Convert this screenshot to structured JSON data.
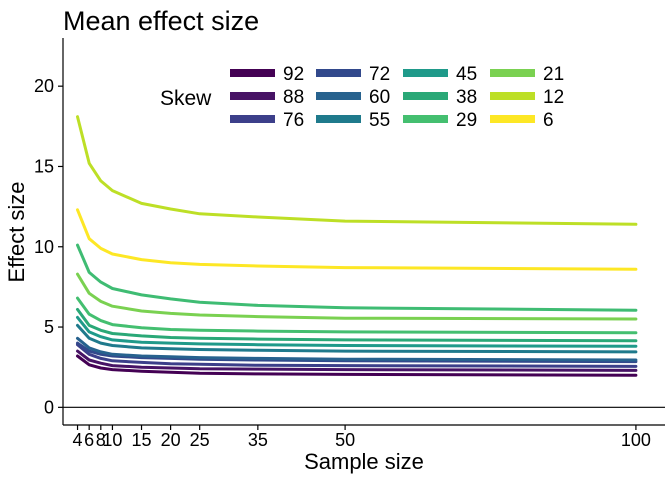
{
  "chart_data": {
    "type": "line",
    "title": "Mean effect size",
    "xlabel": "Sample size",
    "ylabel": "Effect size",
    "x": [
      4,
      6,
      8,
      10,
      15,
      20,
      25,
      35,
      50,
      100
    ],
    "xticks": [
      4,
      6,
      8,
      10,
      15,
      20,
      25,
      35,
      50,
      100
    ],
    "yticks": [
      0,
      5,
      10,
      15,
      20
    ],
    "xlim": [
      1.5,
      105
    ],
    "ylim": [
      -1.1,
      23
    ],
    "hline": 0,
    "grid": false,
    "legend_title": "Skew",
    "legend_placement": "top-center",
    "series": [
      {
        "name": "92",
        "color": "#440154",
        "values": [
          3.2,
          2.65,
          2.45,
          2.35,
          2.25,
          2.18,
          2.12,
          2.08,
          2.05,
          2.0
        ]
      },
      {
        "name": "88",
        "color": "#471365",
        "values": [
          3.5,
          2.95,
          2.75,
          2.6,
          2.5,
          2.45,
          2.4,
          2.38,
          2.35,
          2.3
        ]
      },
      {
        "name": "76",
        "color": "#3c3f8a",
        "values": [
          3.9,
          3.3,
          3.05,
          2.9,
          2.8,
          2.72,
          2.68,
          2.62,
          2.6,
          2.55
        ]
      },
      {
        "name": "72",
        "color": "#32498c",
        "values": [
          4.0,
          3.5,
          3.3,
          3.2,
          3.1,
          3.05,
          3.0,
          2.95,
          2.9,
          2.85
        ]
      },
      {
        "name": "60",
        "color": "#27628e",
        "values": [
          4.3,
          3.7,
          3.45,
          3.3,
          3.2,
          3.15,
          3.1,
          3.05,
          3.0,
          2.95
        ]
      },
      {
        "name": "55",
        "color": "#1f7a8c",
        "values": [
          5.1,
          4.3,
          4.0,
          3.85,
          3.7,
          3.65,
          3.6,
          3.55,
          3.5,
          3.45
        ]
      },
      {
        "name": "45",
        "color": "#1f9a8a",
        "values": [
          5.6,
          4.7,
          4.4,
          4.2,
          4.05,
          4.0,
          3.95,
          3.9,
          3.85,
          3.8
        ]
      },
      {
        "name": "38",
        "color": "#2aa877",
        "values": [
          6.1,
          5.1,
          4.8,
          4.6,
          4.45,
          4.35,
          4.3,
          4.25,
          4.2,
          4.15
        ]
      },
      {
        "name": "29",
        "color": "#44bf70",
        "values": [
          6.8,
          5.8,
          5.4,
          5.15,
          4.95,
          4.85,
          4.8,
          4.75,
          4.7,
          4.65
        ]
      },
      {
        "name": "21",
        "color": "#7ad151",
        "values": [
          8.3,
          7.1,
          6.6,
          6.3,
          6.0,
          5.85,
          5.75,
          5.65,
          5.55,
          5.5
        ]
      },
      {
        "name": "12",
        "color": "#bddf26",
        "values": [
          18.1,
          15.2,
          14.1,
          13.5,
          12.7,
          12.35,
          12.05,
          11.85,
          11.6,
          11.4
        ]
      },
      {
        "name": "6",
        "color": "#fde725",
        "values": [
          12.3,
          10.5,
          9.9,
          9.55,
          9.2,
          9.0,
          8.9,
          8.8,
          8.7,
          8.6
        ]
      }
    ],
    "extra_series": [
      {
        "color": "#3fbc73",
        "values": [
          10.1,
          8.4,
          7.8,
          7.4,
          7.0,
          6.75,
          6.55,
          6.35,
          6.2,
          6.05
        ]
      }
    ]
  }
}
